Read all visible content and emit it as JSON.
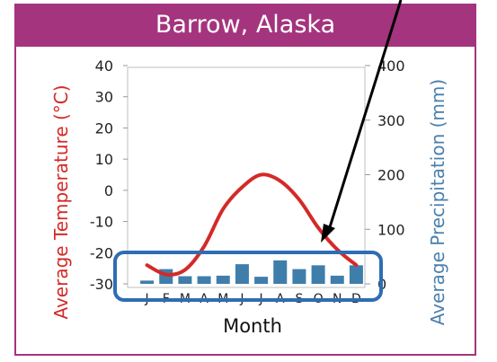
{
  "chart_data": {
    "type": "line",
    "title": "Barrow, Alaska",
    "xlabel": "Month",
    "ylabel_left": "Average Temperature (°C)",
    "ylabel_right": "Average Precipitation (mm)",
    "categories": [
      "J",
      "F",
      "M",
      "A",
      "M",
      "J",
      "J",
      "A",
      "S",
      "O",
      "N",
      "D"
    ],
    "ylim_left": [
      -30,
      40
    ],
    "ylim_right": [
      0,
      400
    ],
    "yticks_left": [
      "40",
      "30",
      "20",
      "10",
      "0",
      "-10",
      "-20",
      "-30"
    ],
    "yticks_right": [
      "400",
      "300",
      "200",
      "100",
      "0"
    ],
    "series": [
      {
        "axis": "left",
        "kind": "line",
        "color": "#d42a27",
        "values": [
          -24,
          -27,
          -25.5,
          -18,
          -6,
          1,
          5,
          3,
          -3,
          -12,
          -19,
          -24
        ]
      },
      {
        "axis": "right",
        "kind": "bar",
        "color": "#3f7eab",
        "values": [
          6,
          27,
          14,
          14,
          15,
          36,
          13,
          43,
          27,
          34,
          15,
          34
        ]
      }
    ],
    "grid": false
  },
  "annotations": {
    "highlight_color": "#2f6db3",
    "arrow_color": "#000000"
  },
  "theme": {
    "header_color": "#a4347d",
    "temp_color": "#d42a27",
    "precip_color": "#4a80ad"
  }
}
